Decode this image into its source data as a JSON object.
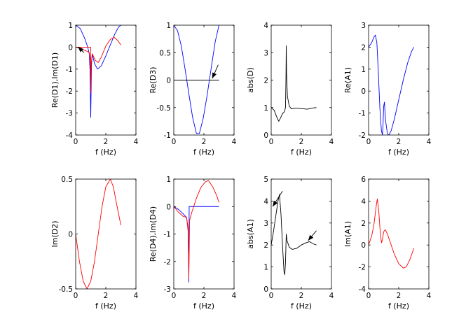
{
  "chart_data": [
    {
      "type": "line",
      "ylabel": "Re(D1),Im(D1)",
      "xlabel": "f (Hz)",
      "xlim": [
        0,
        4
      ],
      "ylim": [
        -4,
        1
      ],
      "xticks": [
        0,
        2,
        4
      ],
      "yticks": [
        -4,
        -3,
        -2,
        -1,
        0,
        1
      ],
      "series": [
        {
          "name": "Re(D1)",
          "color": "#0000ff",
          "points": [
            [
              0,
              1
            ],
            [
              0.3,
              0.85
            ],
            [
              0.6,
              0.4
            ],
            [
              0.8,
              0.0
            ],
            [
              0.9,
              -0.3
            ],
            [
              0.95,
              -1.0
            ],
            [
              1.0,
              -3.2
            ],
            [
              1.05,
              -0.8
            ],
            [
              1.1,
              -0.3
            ],
            [
              1.25,
              -0.75
            ],
            [
              1.45,
              -1.0
            ],
            [
              1.7,
              -0.85
            ],
            [
              2.0,
              -0.4
            ],
            [
              2.3,
              0.1
            ],
            [
              2.6,
              0.6
            ],
            [
              2.85,
              0.92
            ],
            [
              3.0,
              1.0
            ]
          ]
        },
        {
          "name": "Im(D1)",
          "color": "#ff0000",
          "points": [
            [
              0,
              0
            ],
            [
              0.2,
              -0.03
            ],
            [
              0.5,
              -0.12
            ],
            [
              0.8,
              -0.2
            ],
            [
              0.9,
              -0.25
            ],
            [
              0.97,
              -0.6
            ],
            [
              1.0,
              -2.1
            ],
            [
              1.04,
              -0.7
            ],
            [
              1.1,
              -0.3
            ],
            [
              1.3,
              -0.6
            ],
            [
              1.5,
              -0.7
            ],
            [
              1.7,
              -0.45
            ],
            [
              2.0,
              0.05
            ],
            [
              2.3,
              0.35
            ],
            [
              2.55,
              0.45
            ],
            [
              2.8,
              0.3
            ],
            [
              3.0,
              0.1
            ]
          ]
        },
        {
          "name": "Im(D1) step",
          "color": "#ff0000",
          "points": [
            [
              0,
              0
            ],
            [
              1,
              0
            ],
            [
              1,
              -2.1
            ]
          ]
        }
      ],
      "annotations": [
        {
          "type": "arrow",
          "from": [
            0.55,
            -0.25
          ],
          "to": [
            0.15,
            0.02
          ]
        }
      ]
    },
    {
      "type": "line",
      "ylabel": "Re(D3)",
      "xlabel": "f (Hz)",
      "xlim": [
        0,
        4
      ],
      "ylim": [
        -1,
        1
      ],
      "xticks": [
        0,
        2,
        4
      ],
      "yticks": [
        -1,
        -0.5,
        0,
        0.5,
        1
      ],
      "series": [
        {
          "name": "Re(D3)",
          "color": "#0000ff",
          "points": [
            [
              0,
              1.0
            ],
            [
              0.25,
              0.9
            ],
            [
              0.5,
              0.62
            ],
            [
              0.75,
              0.2
            ],
            [
              1.0,
              -0.25
            ],
            [
              1.25,
              -0.68
            ],
            [
              1.5,
              -0.97
            ],
            [
              1.7,
              -0.97
            ],
            [
              1.95,
              -0.7
            ],
            [
              2.2,
              -0.3
            ],
            [
              2.5,
              0.25
            ],
            [
              2.75,
              0.7
            ],
            [
              3.0,
              1.0
            ]
          ]
        },
        {
          "name": "zero",
          "color": "#000000",
          "points": [
            [
              0,
              0
            ],
            [
              3,
              0
            ]
          ]
        }
      ],
      "annotations": [
        {
          "type": "arrow",
          "from": [
            2.95,
            0.28
          ],
          "to": [
            2.55,
            0.03
          ]
        }
      ]
    },
    {
      "type": "line",
      "ylabel": "abs(D)",
      "xlabel": "f (Hz)",
      "xlim": [
        0,
        4
      ],
      "ylim": [
        0,
        4
      ],
      "xticks": [
        0,
        2,
        4
      ],
      "yticks": [
        0,
        1,
        2,
        3,
        4
      ],
      "series": [
        {
          "name": "abs(D)",
          "color": "#000000",
          "points": [
            [
              0,
              1.0
            ],
            [
              0.2,
              0.9
            ],
            [
              0.35,
              0.68
            ],
            [
              0.5,
              0.5
            ],
            [
              0.6,
              0.6
            ],
            [
              0.75,
              0.78
            ],
            [
              0.88,
              0.85
            ],
            [
              0.95,
              1.0
            ],
            [
              0.98,
              2.0
            ],
            [
              1.0,
              3.25
            ],
            [
              1.02,
              2.2
            ],
            [
              1.08,
              1.4
            ],
            [
              1.2,
              1.05
            ],
            [
              1.35,
              0.95
            ],
            [
              1.6,
              0.98
            ],
            [
              2.0,
              0.96
            ],
            [
              2.4,
              0.94
            ],
            [
              2.7,
              0.98
            ],
            [
              3.0,
              1.0
            ]
          ]
        }
      ]
    },
    {
      "type": "line",
      "ylabel": "Re(A1)",
      "xlabel": "f (Hz)",
      "xlim": [
        0,
        4
      ],
      "ylim": [
        -2,
        3
      ],
      "xticks": [
        0,
        2,
        4
      ],
      "yticks": [
        -2,
        -1,
        0,
        1,
        2,
        3
      ],
      "series": [
        {
          "name": "Re(A1)",
          "color": "#0000ff",
          "points": [
            [
              0,
              2.0
            ],
            [
              0.2,
              2.2
            ],
            [
              0.35,
              2.45
            ],
            [
              0.45,
              2.55
            ],
            [
              0.55,
              2.2
            ],
            [
              0.65,
              0.8
            ],
            [
              0.75,
              -0.8
            ],
            [
              0.85,
              -1.8
            ],
            [
              0.92,
              -2.0
            ],
            [
              0.96,
              -1.5
            ],
            [
              1.0,
              -0.7
            ],
            [
              1.05,
              -0.5
            ],
            [
              1.12,
              -1.3
            ],
            [
              1.25,
              -1.95
            ],
            [
              1.35,
              -2.0
            ],
            [
              1.5,
              -1.8
            ],
            [
              1.7,
              -1.3
            ],
            [
              2.0,
              -0.4
            ],
            [
              2.3,
              0.5
            ],
            [
              2.6,
              1.3
            ],
            [
              2.85,
              1.8
            ],
            [
              3.0,
              2.0
            ]
          ]
        }
      ]
    },
    {
      "type": "line",
      "ylabel": "Im(D2)",
      "xlabel": "f (Hz)",
      "xlim": [
        0,
        4
      ],
      "ylim": [
        -0.5,
        0.5
      ],
      "xticks": [
        0,
        2,
        4
      ],
      "yticks": [
        -0.5,
        0,
        0.5
      ],
      "series": [
        {
          "name": "Im(D2)",
          "color": "#ff0000",
          "points": [
            [
              0,
              0
            ],
            [
              0.25,
              -0.25
            ],
            [
              0.5,
              -0.43
            ],
            [
              0.75,
              -0.5
            ],
            [
              1.0,
              -0.43
            ],
            [
              1.25,
              -0.25
            ],
            [
              1.5,
              0.0
            ],
            [
              1.75,
              0.25
            ],
            [
              2.0,
              0.43
            ],
            [
              2.3,
              0.5
            ],
            [
              2.5,
              0.43
            ],
            [
              2.75,
              0.25
            ],
            [
              3.0,
              0.08
            ]
          ]
        }
      ]
    },
    {
      "type": "line",
      "ylabel": "Re(D4),Im(D4)",
      "xlabel": "f (Hz)",
      "xlim": [
        0,
        4
      ],
      "ylim": [
        -3,
        1
      ],
      "xticks": [
        0,
        2,
        4
      ],
      "yticks": [
        -3,
        -2,
        -1,
        0,
        1
      ],
      "series": [
        {
          "name": "Re(D4)",
          "color": "#0000ff",
          "points": [
            [
              0,
              0
            ],
            [
              0.3,
              -0.1
            ],
            [
              0.6,
              -0.25
            ],
            [
              0.85,
              -0.4
            ],
            [
              0.95,
              -0.8
            ],
            [
              1.0,
              -2.75
            ],
            [
              1.02,
              -0.1
            ],
            [
              1.02,
              0
            ],
            [
              3.0,
              0
            ]
          ]
        },
        {
          "name": "Im(D4)",
          "color": "#ff0000",
          "points": [
            [
              0,
              0
            ],
            [
              0.3,
              -0.2
            ],
            [
              0.6,
              -0.35
            ],
            [
              0.85,
              -0.4
            ],
            [
              0.95,
              -0.9
            ],
            [
              1.0,
              -2.6
            ],
            [
              1.05,
              -0.5
            ],
            [
              1.2,
              -0.2
            ],
            [
              1.5,
              0.3
            ],
            [
              1.8,
              0.7
            ],
            [
              2.1,
              0.9
            ],
            [
              2.3,
              0.95
            ],
            [
              2.6,
              0.7
            ],
            [
              2.85,
              0.4
            ],
            [
              3.0,
              0.15
            ]
          ]
        }
      ]
    },
    {
      "type": "line",
      "ylabel": "abs(A1)",
      "xlabel": "f (Hz)",
      "xlim": [
        0,
        4
      ],
      "ylim": [
        0,
        5
      ],
      "xticks": [
        0,
        2,
        4
      ],
      "yticks": [
        0,
        1,
        2,
        3,
        4,
        5
      ],
      "series": [
        {
          "name": "abs(A1)",
          "color": "#000000",
          "points": [
            [
              0,
              2.0
            ],
            [
              0.15,
              2.6
            ],
            [
              0.3,
              3.3
            ],
            [
              0.45,
              4.0
            ],
            [
              0.55,
              4.3
            ],
            [
              0.65,
              3.4
            ],
            [
              0.75,
              2.0
            ],
            [
              0.85,
              0.8
            ],
            [
              0.9,
              0.65
            ],
            [
              0.95,
              1.2
            ],
            [
              1.0,
              2.5
            ],
            [
              1.05,
              2.2
            ],
            [
              1.2,
              1.9
            ],
            [
              1.4,
              1.8
            ],
            [
              1.7,
              1.85
            ],
            [
              2.0,
              2.0
            ],
            [
              2.3,
              2.1
            ],
            [
              2.55,
              2.15
            ],
            [
              2.8,
              2.05
            ],
            [
              3.0,
              2.0
            ]
          ]
        }
      ],
      "annotations": [
        {
          "type": "arrow",
          "from": [
            0.75,
            4.45
          ],
          "to": [
            0.1,
            3.75
          ]
        },
        {
          "type": "arrow",
          "from": [
            3.0,
            2.65
          ],
          "to": [
            2.45,
            2.2
          ]
        }
      ]
    },
    {
      "type": "line",
      "ylabel": "Im(A1)",
      "xlabel": "f (Hz)",
      "xlim": [
        0,
        4
      ],
      "ylim": [
        -4,
        6
      ],
      "xticks": [
        0,
        2,
        4
      ],
      "yticks": [
        -4,
        -2,
        0,
        2,
        4,
        6
      ],
      "series": [
        {
          "name": "Im(A1)",
          "color": "#ff0000",
          "points": [
            [
              0,
              0
            ],
            [
              0.2,
              0.8
            ],
            [
              0.35,
              1.8
            ],
            [
              0.5,
              3.5
            ],
            [
              0.58,
              4.2
            ],
            [
              0.68,
              3.0
            ],
            [
              0.78,
              1.0
            ],
            [
              0.86,
              0.2
            ],
            [
              0.92,
              0.5
            ],
            [
              1.0,
              1.2
            ],
            [
              1.1,
              1.4
            ],
            [
              1.25,
              1.0
            ],
            [
              1.45,
              0.2
            ],
            [
              1.7,
              -0.8
            ],
            [
              2.0,
              -1.7
            ],
            [
              2.3,
              -2.1
            ],
            [
              2.5,
              -2.0
            ],
            [
              2.75,
              -1.3
            ],
            [
              3.0,
              -0.3
            ]
          ]
        }
      ]
    }
  ]
}
